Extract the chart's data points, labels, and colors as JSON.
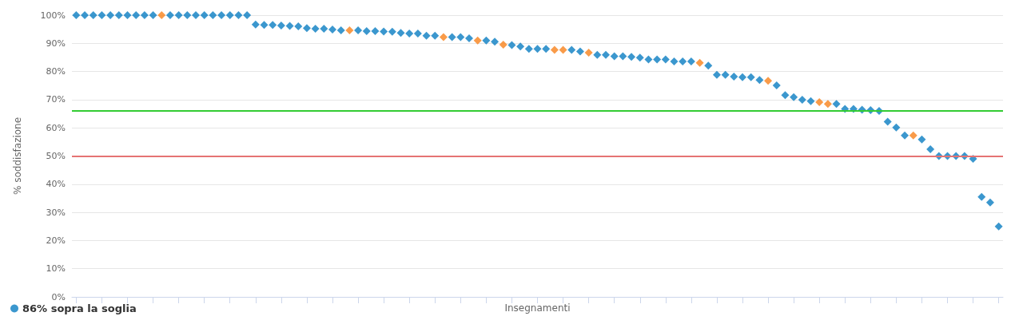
{
  "chart_data": {
    "type": "scatter",
    "xlabel": "Insegnamenti",
    "ylabel": "% soddisfazione",
    "categories": [
      null,
      null,
      null,
      null,
      null,
      null,
      null,
      null,
      null,
      null,
      null,
      null,
      null,
      null,
      null,
      null,
      null,
      null,
      null,
      null,
      null,
      null,
      null,
      null,
      null,
      null,
      null,
      null,
      null,
      null,
      null,
      null,
      null,
      null,
      null,
      null,
      null,
      null,
      null,
      null,
      null,
      null,
      null,
      null,
      null,
      null,
      null,
      null,
      null,
      null,
      null,
      null,
      null,
      null,
      null,
      null,
      null,
      null,
      null,
      null,
      null,
      null,
      null,
      null,
      null,
      null,
      null,
      null,
      null,
      null,
      null,
      null,
      null,
      null,
      null,
      null,
      null,
      null,
      null,
      null,
      null,
      null,
      null,
      null,
      null,
      null,
      null,
      null,
      null,
      null,
      null,
      null,
      null,
      null,
      null,
      null,
      null,
      null,
      null,
      null,
      null,
      null,
      null,
      null,
      null,
      null,
      null,
      null,
      null
    ],
    "series": [
      {
        "name": "86% sopra la soglia",
        "color": "#0a7dc2",
        "values": [
          100,
          100,
          100,
          100,
          100,
          100,
          100,
          100,
          100,
          100,
          100,
          100,
          100,
          100,
          100,
          100,
          100,
          100,
          100,
          100,
          100,
          96.7,
          96.5,
          96.5,
          96.3,
          96.2,
          96,
          95.4,
          95.2,
          95.2,
          94.9,
          94.6,
          94.6,
          94.6,
          94.3,
          94.3,
          94.2,
          94.1,
          93.7,
          93.5,
          93.5,
          92.7,
          92.7,
          92.2,
          92.2,
          92.2,
          91.8,
          91,
          91,
          90.6,
          89.5,
          89.4,
          88.9,
          88,
          88,
          88,
          87.7,
          87.7,
          87.7,
          87.1,
          86.7,
          85.9,
          85.9,
          85.4,
          85.4,
          85.2,
          84.9,
          84.3,
          84.3,
          84.3,
          83.6,
          83.6,
          83.6,
          83.1,
          82.1,
          78.8,
          78.8,
          78.2,
          78,
          78,
          77,
          76.7,
          75.1,
          71.6,
          70.9,
          70,
          69.5,
          69.1,
          68.5,
          68.5,
          66.7,
          66.7,
          66.4,
          66.3,
          66,
          62.2,
          60.1,
          57.3,
          57.3,
          55.9,
          52.4,
          50,
          50,
          50,
          50,
          49,
          35.5,
          33.5,
          25
        ],
        "colors": [
          "#0a7dc2",
          "#0a7dc2",
          "#0a7dc2",
          "#0a7dc2",
          "#0a7dc2",
          "#0a7dc2",
          "#0a7dc2",
          "#0a7dc2",
          "#0a7dc2",
          "#0a7dc2",
          "#f7821b",
          "#0a7dc2",
          "#0a7dc2",
          "#0a7dc2",
          "#0a7dc2",
          "#0a7dc2",
          "#0a7dc2",
          "#0a7dc2",
          "#0a7dc2",
          "#0a7dc2",
          "#0a7dc2",
          "#0a7dc2",
          "#0a7dc2",
          "#0a7dc2",
          "#0a7dc2",
          "#0a7dc2",
          "#0a7dc2",
          "#0a7dc2",
          "#0a7dc2",
          "#0a7dc2",
          "#0a7dc2",
          "#0a7dc2",
          "#f7821b",
          "#0a7dc2",
          "#0a7dc2",
          "#0a7dc2",
          "#0a7dc2",
          "#0a7dc2",
          "#0a7dc2",
          "#0a7dc2",
          "#0a7dc2",
          "#0a7dc2",
          "#0a7dc2",
          "#f7821b",
          "#0a7dc2",
          "#0a7dc2",
          "#0a7dc2",
          "#f7821b",
          "#0a7dc2",
          "#0a7dc2",
          "#f7821b",
          "#0a7dc2",
          "#0a7dc2",
          "#0a7dc2",
          "#0a7dc2",
          "#0a7dc2",
          "#f7821b",
          "#f7821b",
          "#0a7dc2",
          "#0a7dc2",
          "#f7821b",
          "#0a7dc2",
          "#0a7dc2",
          "#0a7dc2",
          "#0a7dc2",
          "#0a7dc2",
          "#0a7dc2",
          "#0a7dc2",
          "#0a7dc2",
          "#0a7dc2",
          "#0a7dc2",
          "#0a7dc2",
          "#0a7dc2",
          "#f7821b",
          "#0a7dc2",
          "#0a7dc2",
          "#0a7dc2",
          "#0a7dc2",
          "#0a7dc2",
          "#0a7dc2",
          "#0a7dc2",
          "#f7821b",
          "#0a7dc2",
          "#0a7dc2",
          "#0a7dc2",
          "#0a7dc2",
          "#0a7dc2",
          "#f7821b",
          "#f7821b",
          "#0a7dc2",
          "#0a7dc2",
          "#0a7dc2",
          "#0a7dc2",
          "#0a7dc2",
          "#0a7dc2",
          "#0a7dc2",
          "#0a7dc2",
          "#0a7dc2",
          "#f7821b",
          "#0a7dc2",
          "#0a7dc2",
          "#0a7dc2",
          "#0a7dc2",
          "#0a7dc2",
          "#0a7dc2",
          "#0a7dc2",
          "#0a7dc2",
          "#0a7dc2",
          "#0a7dc2"
        ]
      }
    ],
    "ylim": [
      0,
      100
    ],
    "yticks": [
      {
        "value": 0,
        "label": "0%"
      },
      {
        "value": 10,
        "label": "10%"
      },
      {
        "value": 20,
        "label": "20%"
      },
      {
        "value": 30,
        "label": "30%"
      },
      {
        "value": 40,
        "label": "40%"
      },
      {
        "value": 50,
        "label": "50%"
      },
      {
        "value": 60,
        "label": "60%"
      },
      {
        "value": 70,
        "label": "70%"
      },
      {
        "value": 80,
        "label": "80%"
      },
      {
        "value": 90,
        "label": "90%"
      },
      {
        "value": 100,
        "label": "100%"
      }
    ],
    "ref_lines": [
      {
        "axis": "y",
        "value": 66,
        "label": null,
        "color": "#33cc33"
      },
      {
        "axis": "y",
        "value": 50,
        "label": null,
        "color": "#e57373"
      }
    ],
    "grid": "y",
    "legend": "bottom left",
    "marker": "diamond",
    "tick_labels": "y"
  }
}
